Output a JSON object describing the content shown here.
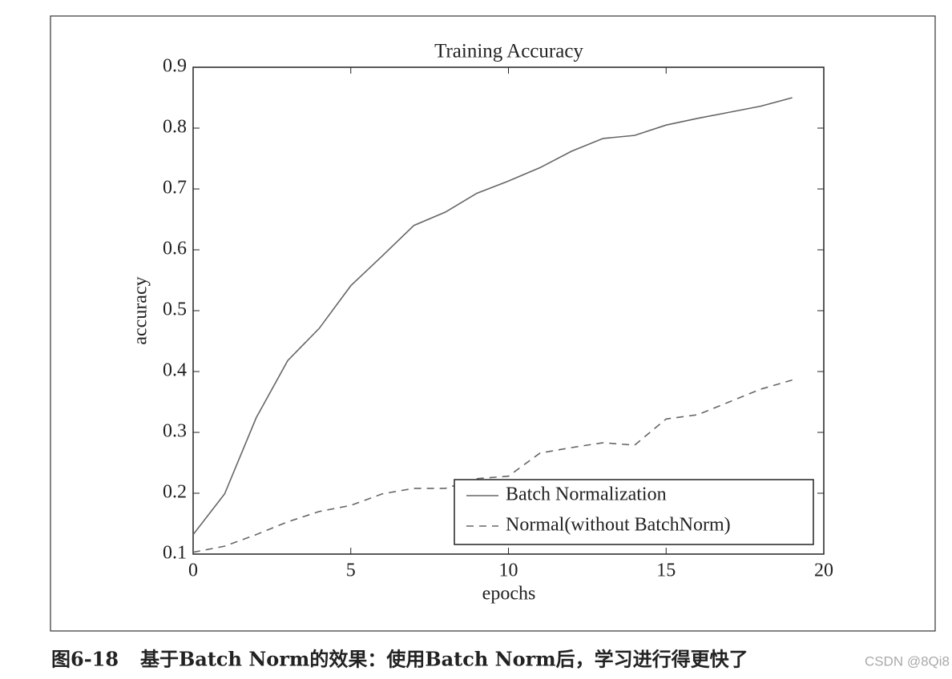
{
  "chart_data": {
    "type": "line",
    "title": "Training Accuracy",
    "xlabel": "epochs",
    "ylabel": "accuracy",
    "x": [
      0,
      1,
      2,
      3,
      4,
      5,
      6,
      7,
      8,
      9,
      10,
      11,
      12,
      13,
      14,
      15,
      16,
      17,
      18,
      19
    ],
    "series": [
      {
        "name": "Batch Normalization",
        "color": "#666666",
        "linestyle": "solid",
        "values": [
          0.132,
          0.199,
          0.324,
          0.418,
          0.471,
          0.541,
          0.59,
          0.64,
          0.662,
          0.693,
          0.713,
          0.735,
          0.762,
          0.783,
          0.788,
          0.805,
          0.816,
          0.826,
          0.836,
          0.85
        ]
      },
      {
        "name": "Normal(without BatchNorm)",
        "color": "#666666",
        "linestyle": "dashed",
        "values": [
          0.103,
          0.113,
          0.132,
          0.153,
          0.17,
          0.18,
          0.199,
          0.208,
          0.208,
          0.224,
          0.228,
          0.266,
          0.275,
          0.283,
          0.279,
          0.322,
          0.329,
          0.35,
          0.371,
          0.386
        ]
      }
    ],
    "xlim": [
      0,
      20
    ],
    "xticks": [
      0,
      5,
      10,
      15,
      20
    ],
    "ylim": [
      0.1,
      0.9
    ],
    "yticks": [
      0.1,
      0.2,
      0.3,
      0.4,
      0.5,
      0.6,
      0.7,
      0.8,
      0.9
    ],
    "legend": "lower right"
  },
  "caption": {
    "label": "图6-18",
    "text": "基于Batch Norm的效果：使用Batch Norm后，学习进行得更快了"
  },
  "watermark": "CSDN @8Qi8"
}
